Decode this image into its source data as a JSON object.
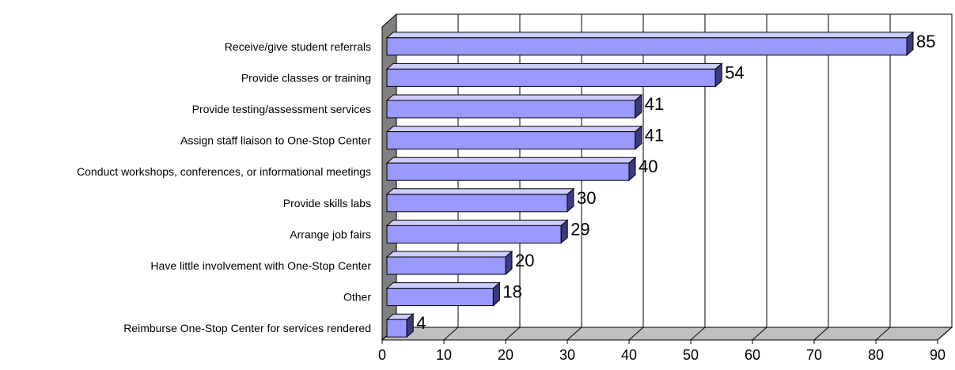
{
  "chart_data": {
    "type": "bar",
    "orientation": "horizontal",
    "style": "3d",
    "title": "",
    "xlabel": "",
    "ylabel": "",
    "xlim": [
      0,
      90
    ],
    "ticks": [
      0,
      10,
      20,
      30,
      40,
      50,
      60,
      70,
      80,
      90
    ],
    "grid": true,
    "legend": "none",
    "categories": [
      "Receive/give student referrals",
      "Provide classes or training",
      "Provide testing/assessment services",
      "Assign staff liaison to One-Stop Center",
      "Conduct workshops, conferences, or informational meetings",
      "Provide skills labs",
      "Arrange job fairs",
      "Have little involvement with One-Stop Center",
      "Other",
      "Reimburse One-Stop Center for services rendered"
    ],
    "values": [
      85,
      54,
      41,
      41,
      40,
      30,
      29,
      20,
      18,
      4
    ],
    "colors": {
      "bar_front": "#9999ff",
      "bar_top": "#ccccff",
      "bar_side": "#3c3c7a",
      "wall": "#ffffff",
      "left_wall": "#808080",
      "floor": "#c0c0c0",
      "grid": "#000000"
    }
  }
}
